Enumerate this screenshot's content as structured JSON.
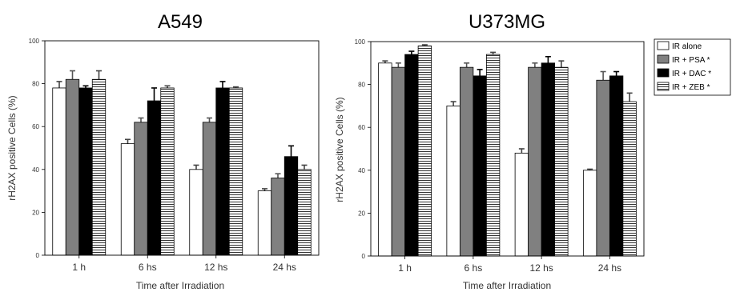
{
  "chart_data": [
    {
      "type": "bar",
      "title": "A549",
      "xlabel": "Time after Irradiation",
      "ylabel": "rH2AX positive Cells (%)",
      "ylim": [
        0,
        100
      ],
      "yticks": [
        "0",
        "20",
        "40",
        "60",
        "80",
        "100"
      ],
      "categories": [
        "1 h",
        "6 hs",
        "12 hs",
        "24 hs"
      ],
      "series": [
        {
          "name": "IR alone",
          "values": [
            78,
            52,
            40,
            30
          ],
          "errors": [
            3,
            2,
            2,
            1
          ]
        },
        {
          "name": "IR + PSA *",
          "values": [
            82,
            62,
            62,
            36
          ],
          "errors": [
            4,
            2,
            2,
            2
          ]
        },
        {
          "name": "IR + DAC *",
          "values": [
            78,
            72,
            78,
            46
          ],
          "errors": [
            1,
            6,
            3,
            5
          ]
        },
        {
          "name": "IR + ZEB *",
          "values": [
            82,
            78,
            78,
            40
          ],
          "errors": [
            4,
            1,
            0.5,
            2
          ]
        }
      ]
    },
    {
      "type": "bar",
      "title": "U373MG",
      "xlabel": "Time after Irradiation",
      "ylabel": "rH2AX positive Cells (%)",
      "ylim": [
        0,
        100
      ],
      "yticks": [
        "0",
        "20",
        "40",
        "60",
        "80",
        "100"
      ],
      "categories": [
        "1 h",
        "6 hs",
        "12 hs",
        "24 hs"
      ],
      "series": [
        {
          "name": "IR alone",
          "values": [
            90,
            70,
            48,
            40
          ],
          "errors": [
            1,
            2,
            2,
            0.5
          ]
        },
        {
          "name": "IR + PSA *",
          "values": [
            88,
            88,
            88,
            82
          ],
          "errors": [
            2,
            2,
            2,
            4
          ]
        },
        {
          "name": "IR + DAC *",
          "values": [
            94,
            84,
            90,
            84
          ],
          "errors": [
            1.5,
            3,
            3,
            2
          ]
        },
        {
          "name": "IR + ZEB *",
          "values": [
            98,
            94,
            88,
            72
          ],
          "errors": [
            0.5,
            1,
            3,
            4
          ]
        }
      ]
    }
  ],
  "legend": {
    "items": [
      "IR alone",
      "IR + PSA *",
      "IR + DAC *",
      "IR + ZEB *"
    ],
    "placement": "right"
  },
  "colors": {
    "IR alone": "#ffffff",
    "IR + PSA *": "#808080",
    "IR + DAC *": "#000000",
    "IR + ZEB *": "hatched-horizontal",
    "axis": "#000000"
  }
}
